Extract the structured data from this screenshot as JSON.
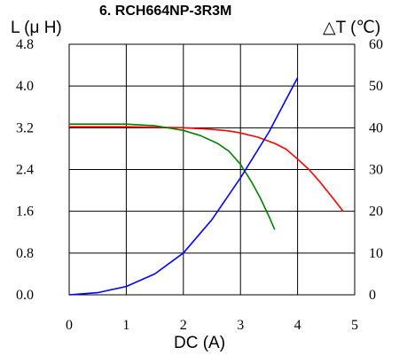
{
  "chart_data": {
    "type": "line",
    "title": "6. RCH664NP-3R3M",
    "xlabel": "DC (A)",
    "ylabel_left": "L (μ H)",
    "ylabel_right": "△T (℃)",
    "xlim": [
      0,
      5
    ],
    "ylim_left": [
      0,
      4.8
    ],
    "ylim_right": [
      0,
      60
    ],
    "x_ticks": [
      "0",
      "1",
      "2",
      "3",
      "4",
      "5"
    ],
    "y_left_ticks": [
      "0.0",
      "0.8",
      "1.6",
      "2.4",
      "3.2",
      "4.0",
      "4.8"
    ],
    "y_right_ticks": [
      "0",
      "10",
      "20",
      "30",
      "40",
      "50",
      "60"
    ],
    "grid": true,
    "series": [
      {
        "axis": "left",
        "color": "#ff0000",
        "x": [
          0,
          0.5,
          1.0,
          1.5,
          2.0,
          2.5,
          2.8,
          3.0,
          3.3,
          3.6,
          3.8,
          4.0,
          4.2,
          4.4,
          4.6,
          4.8
        ],
        "y": [
          3.22,
          3.22,
          3.22,
          3.21,
          3.2,
          3.17,
          3.14,
          3.1,
          3.02,
          2.9,
          2.79,
          2.6,
          2.4,
          2.15,
          1.88,
          1.6
        ]
      },
      {
        "axis": "left",
        "color": "#008000",
        "x": [
          0,
          0.5,
          1.0,
          1.5,
          2.0,
          2.3,
          2.6,
          2.8,
          3.0,
          3.2,
          3.35,
          3.5,
          3.6
        ],
        "y": [
          3.27,
          3.27,
          3.27,
          3.24,
          3.15,
          3.05,
          2.9,
          2.75,
          2.5,
          2.15,
          1.85,
          1.5,
          1.25
        ]
      },
      {
        "axis": "right",
        "color": "#0000ff",
        "x": [
          0,
          0.5,
          1.0,
          1.5,
          2.0,
          2.5,
          3.0,
          3.5,
          4.0
        ],
        "y": [
          0,
          0.5,
          2,
          5,
          10,
          18,
          28,
          39,
          52
        ]
      }
    ]
  }
}
